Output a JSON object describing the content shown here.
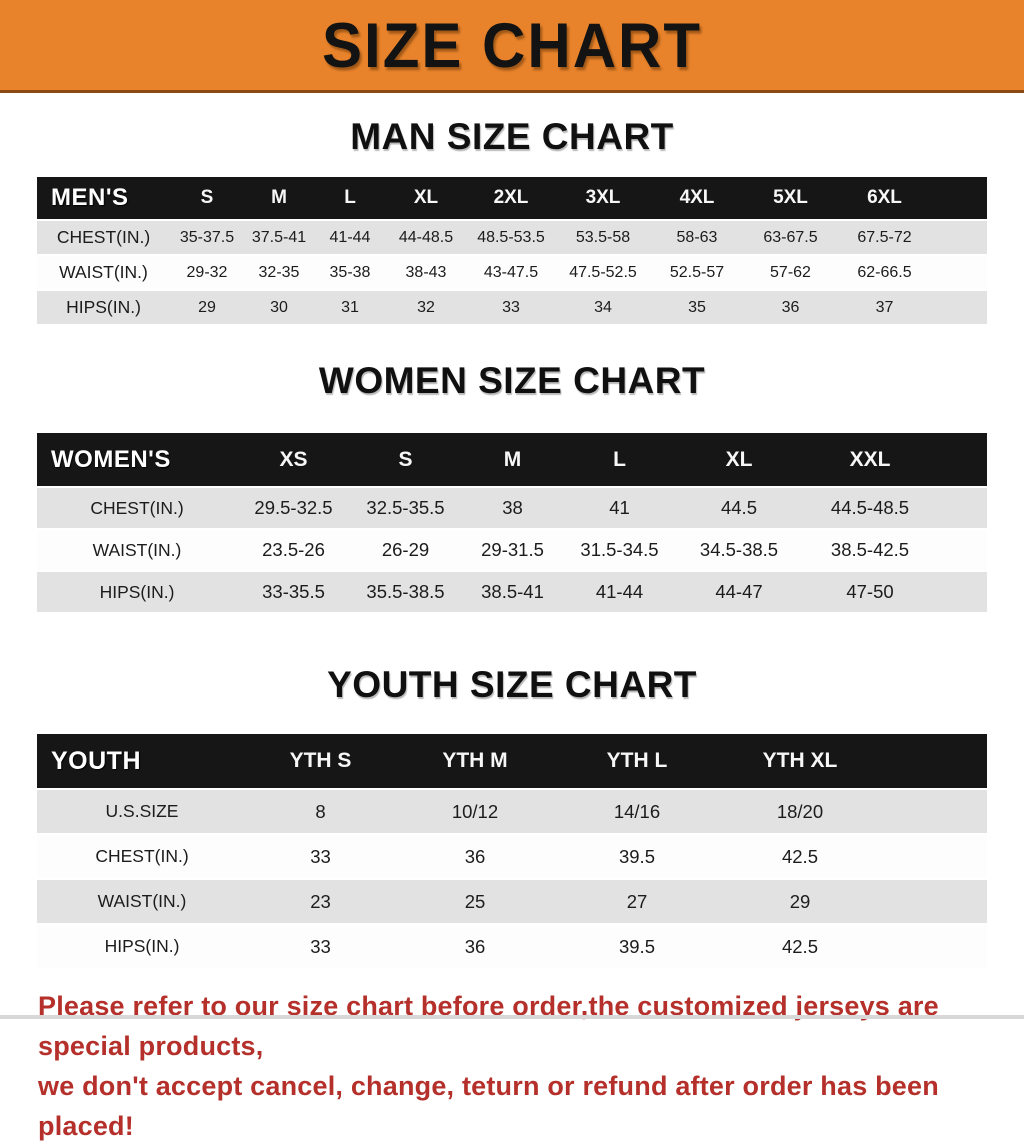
{
  "page": {
    "title": "SIZE CHART",
    "colors": {
      "banner_orange": "#E8832B",
      "header_band_black": "#161616",
      "row_stripe_gray": "#E2E2E2",
      "notice_red": "#B5302A"
    },
    "notice_lines": [
      "Please refer to our size chart before order,the customized jerseys are special products,",
      "we don't accept cancel, change, teturn or refund after order has been placed!"
    ]
  },
  "sections": [
    {
      "heading": "MAN SIZE CHART",
      "table": {
        "corner_label": "MEN'S",
        "columns": [
          "S",
          "M",
          "L",
          "XL",
          "2XL",
          "3XL",
          "4XL",
          "5XL",
          "6XL"
        ],
        "rows": [
          {
            "label": "CHEST(IN.)",
            "values": [
              "35-37.5",
              "37.5-41",
              "41-44",
              "44-48.5",
              "48.5-53.5",
              "53.5-58",
              "58-63",
              "63-67.5",
              "67.5-72"
            ]
          },
          {
            "label": "WAIST(IN.)",
            "values": [
              "29-32",
              "32-35",
              "35-38",
              "38-43",
              "43-47.5",
              "47.5-52.5",
              "52.5-57",
              "57-62",
              "62-66.5"
            ]
          },
          {
            "label": "HIPS(IN.)",
            "values": [
              "29",
              "30",
              "31",
              "32",
              "33",
              "34",
              "35",
              "36",
              "37"
            ]
          }
        ]
      }
    },
    {
      "heading": "WOMEN SIZE CHART",
      "table": {
        "corner_label": "WOMEN'S",
        "columns": [
          "XS",
          "S",
          "M",
          "L",
          "XL",
          "XXL"
        ],
        "rows": [
          {
            "label": "CHEST(IN.)",
            "values": [
              "29.5-32.5",
              "32.5-35.5",
              "38",
              "41",
              "44.5",
              "44.5-48.5"
            ]
          },
          {
            "label": "WAIST(IN.)",
            "values": [
              "23.5-26",
              "26-29",
              "29-31.5",
              "31.5-34.5",
              "34.5-38.5",
              "38.5-42.5"
            ]
          },
          {
            "label": "HIPS(IN.)",
            "values": [
              "33-35.5",
              "35.5-38.5",
              "38.5-41",
              "41-44",
              "44-47",
              "47-50"
            ]
          }
        ]
      }
    },
    {
      "heading": "YOUTH SIZE CHART",
      "table": {
        "corner_label": "YOUTH",
        "columns": [
          "YTH S",
          "YTH M",
          "YTH L",
          "YTH XL"
        ],
        "rows": [
          {
            "label": "U.S.SIZE",
            "values": [
              "8",
              "10/12",
              "14/16",
              "18/20"
            ]
          },
          {
            "label": "CHEST(IN.)",
            "values": [
              "33",
              "36",
              "39.5",
              "42.5"
            ]
          },
          {
            "label": "WAIST(IN.)",
            "values": [
              "23",
              "25",
              "27",
              "29"
            ]
          },
          {
            "label": "HIPS(IN.)",
            "values": [
              "33",
              "36",
              "39.5",
              "42.5"
            ]
          }
        ]
      }
    }
  ]
}
